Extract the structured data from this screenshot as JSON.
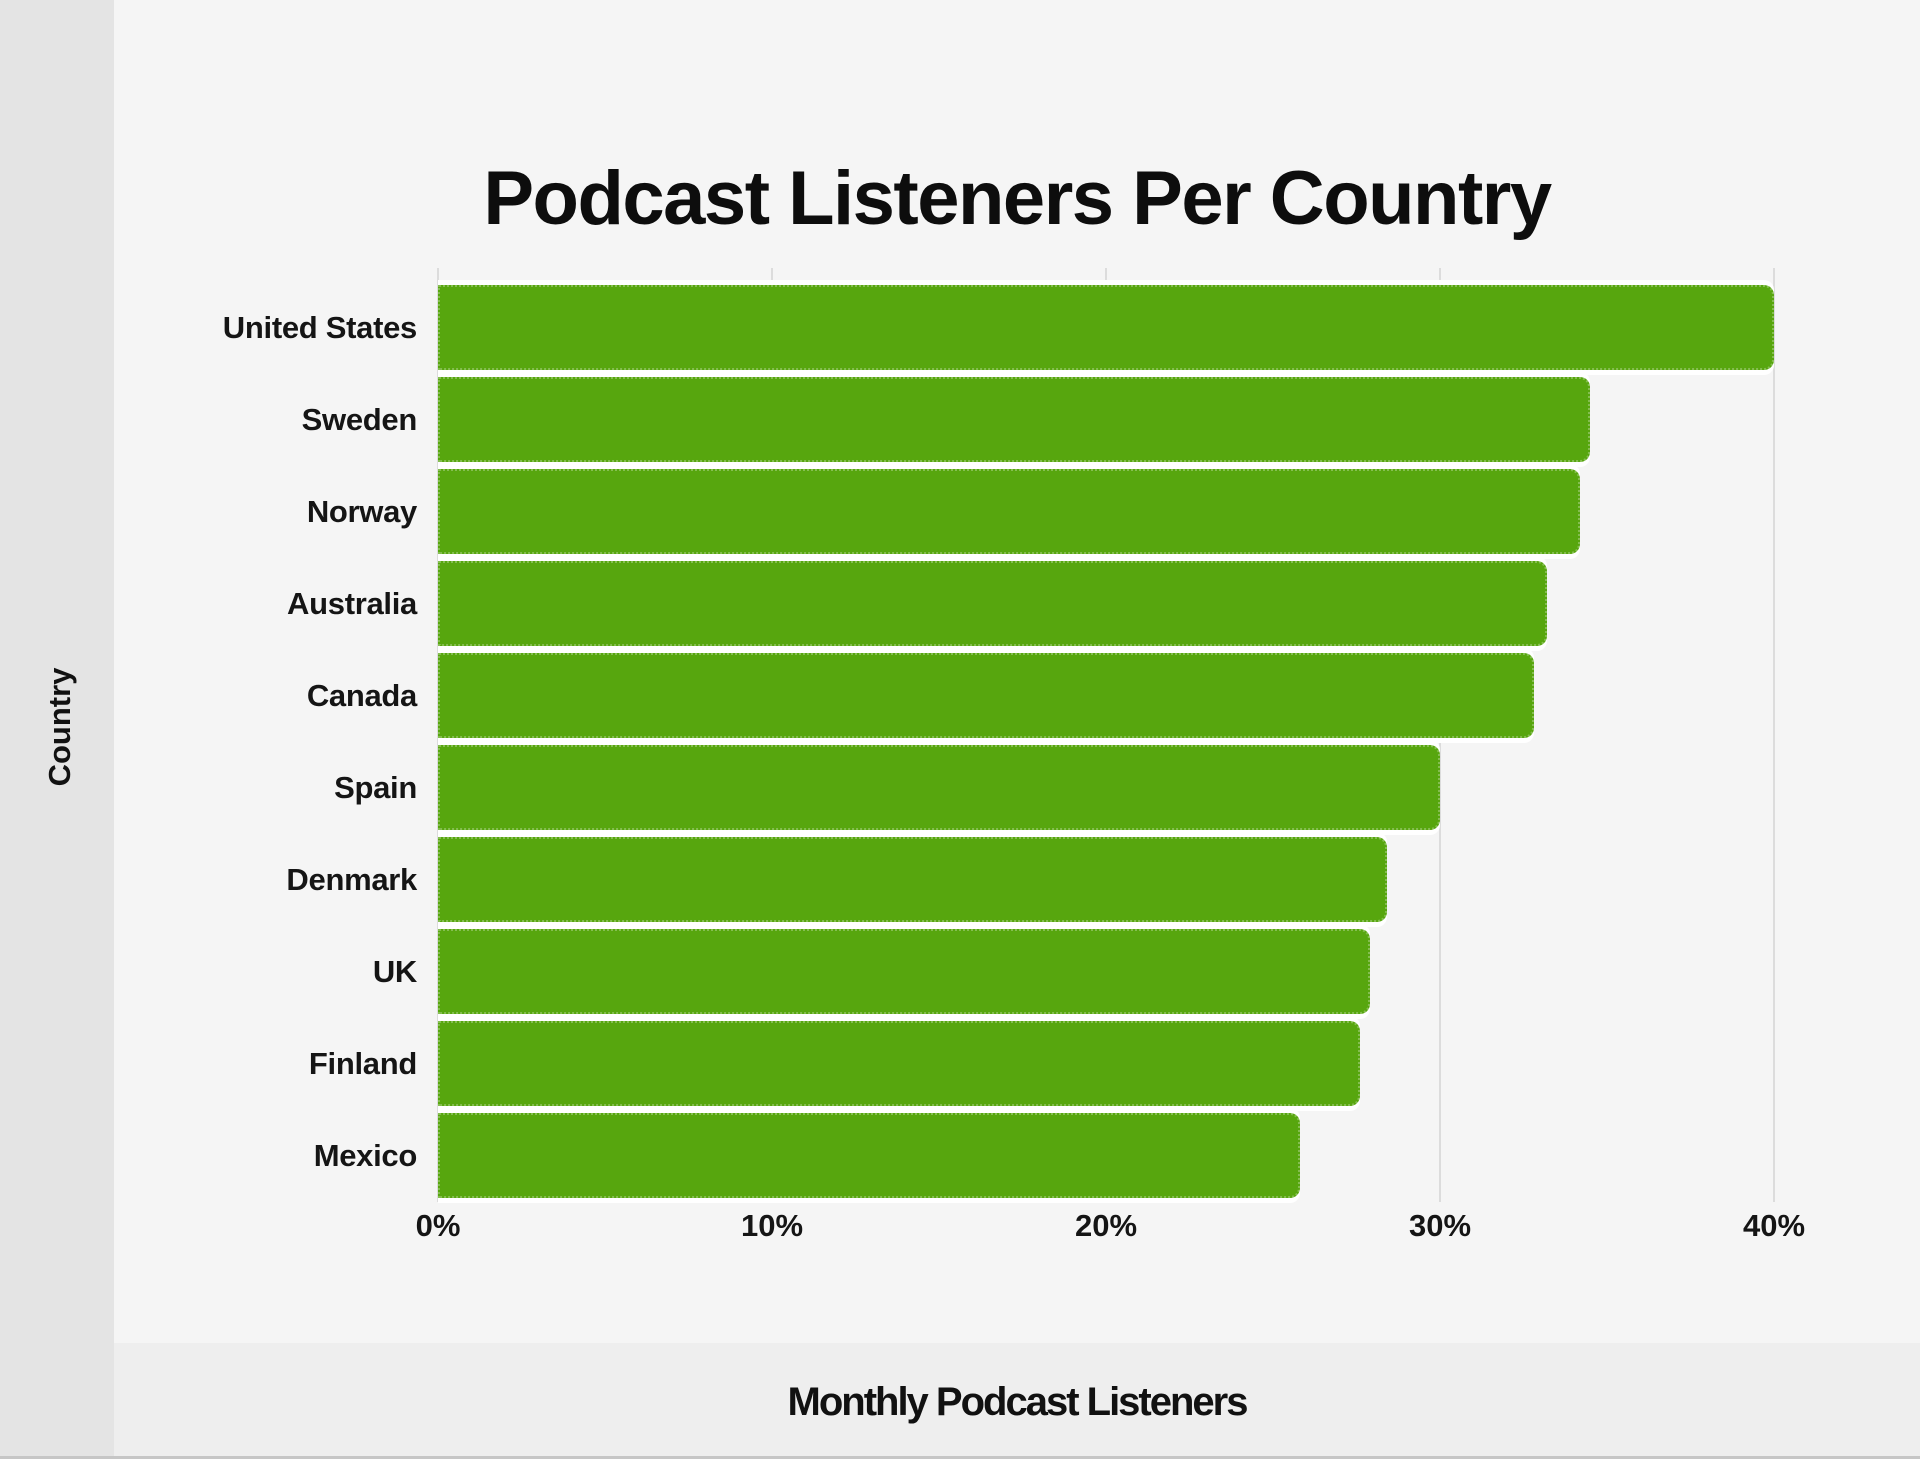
{
  "page": {
    "title": "Podcast Listeners Per Country",
    "x_axis_label": "Monthly Podcast Listeners",
    "y_axis_label": "Country"
  },
  "chart_data": {
    "type": "bar",
    "orientation": "horizontal",
    "title": "Podcast Listeners Per Country",
    "xlabel": "Monthly Podcast Listeners",
    "ylabel": "Country",
    "categories": [
      "United States",
      "Sweden",
      "Norway",
      "Australia",
      "Canada",
      "Spain",
      "Denmark",
      "UK",
      "Finland",
      "Mexico"
    ],
    "values": [
      40.0,
      34.5,
      34.2,
      33.2,
      32.8,
      30.0,
      28.4,
      27.9,
      27.6,
      25.8
    ],
    "unit": "%",
    "xlim": [
      0,
      40
    ],
    "x_ticks": [
      "0%",
      "10%",
      "20%",
      "30%",
      "40%"
    ],
    "x_tick_values": [
      0,
      10,
      20,
      30,
      40
    ],
    "grid": true,
    "legend": "none",
    "colors": {
      "bar": "#57a60e",
      "card_bg": "#f5f5f5",
      "page_margin_bg": "#e4e4e4",
      "footer_bg": "#eeeeee",
      "gridline": "#dcdcdc",
      "text": "#111111"
    }
  }
}
